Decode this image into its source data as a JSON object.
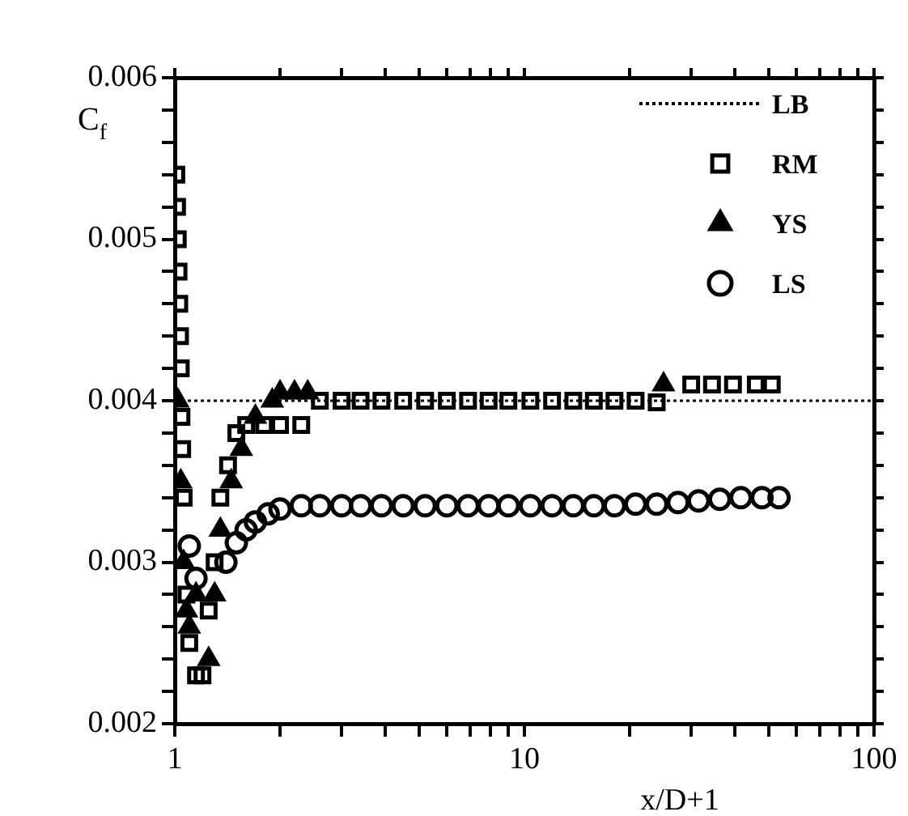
{
  "chart_data": {
    "type": "scatter",
    "xlabel": "x/D+1",
    "ylabel": "C$_{f}$",
    "log": "x",
    "grid": false,
    "legend": "top right",
    "xlim": [
      1,
      100
    ],
    "ylim": [
      0.002,
      0.006
    ],
    "xticks": [
      1,
      {
        "value": 2,
        "label": null
      },
      {
        "value": 3,
        "label": null
      },
      {
        "value": 4,
        "label": null
      },
      {
        "value": 5,
        "label": null
      },
      {
        "value": 6,
        "label": null
      },
      {
        "value": 7,
        "label": null
      },
      {
        "value": 8,
        "label": null
      },
      {
        "value": 9,
        "label": null
      },
      10,
      {
        "value": 20,
        "label": null
      },
      {
        "value": 30,
        "label": null
      },
      {
        "value": 40,
        "label": null
      },
      {
        "value": 50,
        "label": null
      },
      {
        "value": 60,
        "label": null
      },
      {
        "value": 70,
        "label": null
      },
      {
        "value": 80,
        "label": null
      },
      {
        "value": 90,
        "label": null
      },
      100
    ],
    "yticks": [
      0.002,
      {
        "value": 0.0022,
        "label": null
      },
      {
        "value": 0.0024,
        "label": null
      },
      {
        "value": 0.0026,
        "label": null
      },
      {
        "value": 0.0028,
        "label": null
      },
      0.003,
      {
        "value": 0.0032,
        "label": null
      },
      {
        "value": 0.0034,
        "label": null
      },
      {
        "value": 0.0036,
        "label": null
      },
      {
        "value": 0.0038,
        "label": null
      },
      0.004,
      {
        "value": 0.0042,
        "label": null
      },
      {
        "value": 0.0044,
        "label": null
      },
      {
        "value": 0.0046,
        "label": null
      },
      {
        "value": 0.0048,
        "label": null
      },
      0.005,
      {
        "value": 0.0052,
        "label": null
      },
      {
        "value": 0.0054,
        "label": null
      },
      {
        "value": 0.0056,
        "label": null
      },
      {
        "value": 0.0058,
        "label": null
      },
      0.006
    ],
    "series": [
      {
        "name": "LB",
        "type": "line",
        "color": "#000000",
        "marker": "none",
        "line_style": "dotted",
        "x": [
          1,
          100
        ],
        "values": [
          0.004,
          0.004
        ]
      },
      {
        "name": "RM",
        "color": "#000000",
        "marker": "square",
        "x": [
          1.01,
          1.015,
          1.02,
          1.025,
          1.03,
          1.035,
          1.04,
          1.045,
          1.05,
          1.06,
          1.07,
          1.08,
          1.1,
          1.15,
          1.2,
          1.25,
          1.3,
          1.35,
          1.42,
          1.5,
          1.6,
          1.8,
          2.0,
          2.3,
          2.6,
          3.0,
          3.4,
          3.9,
          4.5,
          5.2,
          6.0,
          6.9,
          7.9,
          9.0,
          10.4,
          12,
          13.8,
          15.8,
          18.1,
          20.8,
          23.9,
          30,
          34.4,
          39.5,
          45.9,
          51
        ],
        "values": [
          0.0054,
          0.0052,
          0.005,
          0.0048,
          0.0046,
          0.0044,
          0.0042,
          0.0039,
          0.0037,
          0.0034,
          null,
          0.0028,
          0.0025,
          0.0023,
          0.0023,
          0.0027,
          0.003,
          0.0034,
          0.0036,
          0.0038,
          0.00385,
          0.00385,
          0.00385,
          0.00385,
          0.004,
          0.004,
          0.004,
          0.004,
          0.004,
          0.004,
          0.004,
          0.004,
          0.004,
          0.004,
          0.004,
          0.004,
          0.004,
          0.004,
          0.004,
          0.004,
          0.00399,
          0.0041,
          0.0041,
          0.0041,
          0.0041,
          0.0041
        ]
      },
      {
        "name": "YS",
        "color": "#000000",
        "marker": "triangle",
        "x": [
          1.02,
          1.04,
          1.06,
          1.08,
          1.1,
          1.15,
          1.25,
          1.3,
          1.35,
          1.45,
          1.55,
          1.7,
          1.9,
          2.0,
          2.2,
          2.4,
          25
        ],
        "values": [
          0.004,
          0.0035,
          0.003,
          0.0027,
          0.0026,
          0.0028,
          0.0024,
          0.0028,
          0.0032,
          0.0035,
          0.0037,
          0.0039,
          0.004,
          0.00405,
          0.00405,
          0.00405,
          0.0041
        ]
      },
      {
        "name": "LS",
        "color": "#000000",
        "marker": "circle",
        "x": [
          1.1,
          1.15,
          1.2,
          1.3,
          1.4,
          1.5,
          1.6,
          1.7,
          1.85,
          2.0,
          2.3,
          2.6,
          3.0,
          3.4,
          3.9,
          4.5,
          5.2,
          6.0,
          6.9,
          7.9,
          9.0,
          10.4,
          12,
          13.8,
          15.8,
          18.1,
          20.8,
          23.9,
          27.5,
          31.5,
          36.2,
          41.6,
          47.8,
          53.5
        ],
        "values": [
          0.0031,
          0.0029,
          null,
          null,
          0.003,
          0.00312,
          0.0032,
          0.00325,
          0.0033,
          0.00333,
          0.00335,
          0.00335,
          0.00335,
          0.00335,
          0.00335,
          0.00335,
          0.00335,
          0.00335,
          0.00335,
          0.00335,
          0.00335,
          0.00335,
          0.00335,
          0.00335,
          0.00335,
          0.00335,
          0.00336,
          0.00336,
          0.00337,
          0.00338,
          0.00339,
          0.0034,
          0.0034,
          0.0034
        ]
      }
    ]
  }
}
